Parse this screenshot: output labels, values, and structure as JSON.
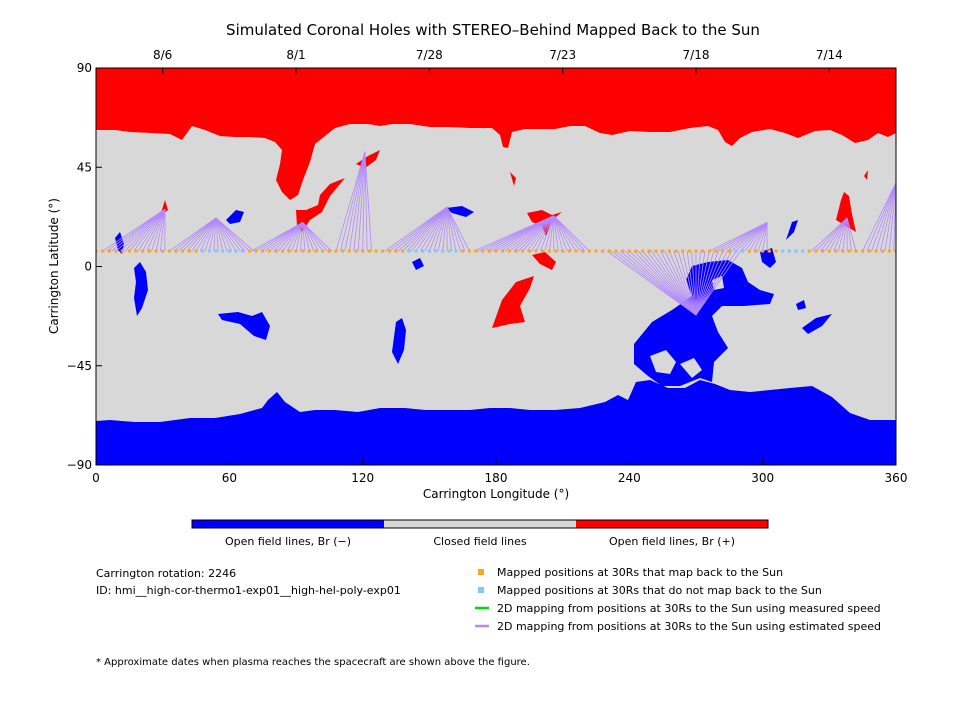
{
  "chart_data": {
    "type": "map",
    "title": "Simulated Coronal Holes with STEREO–Behind Mapped Back to the Sun",
    "xlabel": "Carrington Longitude (°)",
    "ylabel": "Carrington Latitude (°)",
    "xlim": [
      0,
      360
    ],
    "ylim": [
      -90,
      90
    ],
    "x_ticks": [
      0,
      60,
      120,
      180,
      240,
      300,
      360
    ],
    "y_ticks": [
      90,
      45,
      0,
      -45,
      -90
    ],
    "y_tick_labels": [
      "90",
      "45",
      "0",
      "−45",
      "−90"
    ],
    "top_dates": [
      {
        "label": "8/6",
        "lon": 30
      },
      {
        "label": "8/1",
        "lon": 90
      },
      {
        "label": "7/28",
        "lon": 150
      },
      {
        "label": "7/23",
        "lon": 210
      },
      {
        "label": "7/18",
        "lon": 270
      },
      {
        "label": "7/14",
        "lon": 330
      }
    ],
    "colors": {
      "closed": "#d8d8d8",
      "open_negative": "#0000ff",
      "open_positive": "#ff0000",
      "mapped": "#f5a623",
      "unmapped": "#7ec8f8",
      "measured_line": "#00dd00",
      "estimated_line": "#b388ff"
    },
    "color_bar": {
      "segments": [
        {
          "label": "Open field lines, Br (−)",
          "color": "#0000ff"
        },
        {
          "label": "Closed field lines",
          "color": "#d8d8d8"
        },
        {
          "label": "Open field lines, Br (+)",
          "color": "#ff0000"
        }
      ]
    },
    "trajectory_latitude": 7,
    "unmapped_lon_ranges": [
      [
        48,
        68
      ],
      [
        140,
        162
      ],
      [
        288,
        292
      ],
      [
        308,
        318
      ]
    ],
    "mapping_fans": [
      {
        "target": [
          31,
          26
        ],
        "lon_range": [
          3,
          32
        ]
      },
      {
        "target": [
          54,
          22
        ],
        "lon_range": [
          33,
          72
        ]
      },
      {
        "target": [
          93,
          20
        ],
        "lon_range": [
          70,
          106
        ]
      },
      {
        "target": [
          121,
          52
        ],
        "lon_range": [
          108,
          124
        ]
      },
      {
        "target": [
          158,
          27
        ],
        "lon_range": [
          130,
          168
        ]
      },
      {
        "target": [
          206,
          23
        ],
        "lon_range": [
          170,
          222
        ]
      },
      {
        "target": [
          270,
          -22
        ],
        "lon_range": [
          230,
          290
        ]
      },
      {
        "target": [
          302,
          20
        ],
        "lon_range": [
          276,
          302
        ]
      },
      {
        "target": [
          338,
          22
        ],
        "lon_range": [
          322,
          342
        ]
      },
      {
        "target": [
          360,
          38
        ],
        "lon_range": [
          345,
          360
        ]
      }
    ]
  },
  "info": {
    "rotation": "Carrington rotation: 2246",
    "id": "ID: hmi__high-cor-thermo1-exp01__high-hel-poly-exp01"
  },
  "legend": [
    {
      "label": "Mapped positions at 30Rs that map back to the Sun",
      "kind": "square",
      "color": "#f5a623"
    },
    {
      "label": "Mapped positions at 30Rs that do not map back to the Sun",
      "kind": "square",
      "color": "#7ec8f8"
    },
    {
      "label": "2D mapping from positions at 30Rs to the Sun using measured speed",
      "kind": "line",
      "color": "#00dd00"
    },
    {
      "label": "2D mapping from positions at 30Rs to the Sun using estimated speed",
      "kind": "line",
      "color": "#b388ff"
    }
  ],
  "footnote": "* Approximate dates when plasma reaches the spacecraft are shown above the figure."
}
